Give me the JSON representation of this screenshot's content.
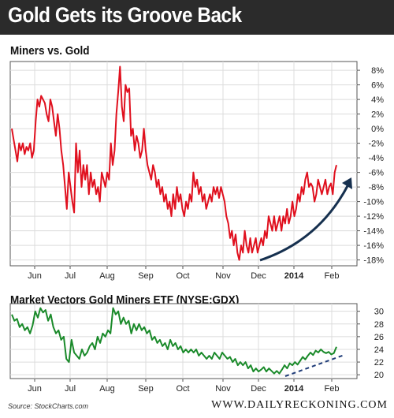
{
  "banner": {
    "title": "Gold Gets its Groove Back"
  },
  "source": "Source: StockCharts.com",
  "brand": "WWW.DAILYRECKONING.COM",
  "colors": {
    "banner": "#2b2b2b",
    "series1": "#e0101e",
    "series2": "#1a8a2a",
    "arrow": "#16304f",
    "trend": "#1f3c78"
  },
  "chart_data": [
    {
      "type": "line",
      "title": "Miners vs. Gold",
      "x_labels": [
        "Jun",
        "Jul",
        "Aug",
        "Sep",
        "Oct",
        "Nov",
        "Dec",
        "2014",
        "Feb"
      ],
      "y_ticks": [
        8,
        6,
        4,
        2,
        0,
        -2,
        -4,
        -6,
        -8,
        -10,
        -12,
        -14,
        -16,
        -18
      ],
      "y_tick_labels": [
        "8%",
        "6%",
        "4%",
        "2%",
        "0%",
        "-2%",
        "-4%",
        "-6%",
        "-8%",
        "-10%",
        "-12%",
        "-14%",
        "-16%",
        "-18%"
      ],
      "ylim": [
        -18.8,
        9.2
      ],
      "grid": true,
      "annotation": "upward arrow from Dec low to Feb",
      "series": [
        {
          "values": [
            0,
            -1.5,
            -3,
            -4.5,
            -2,
            -3,
            -2,
            -3.5,
            -2.5,
            -3,
            -2,
            -4,
            -3,
            1,
            4,
            3,
            4.5,
            4,
            3.5,
            2,
            1,
            4,
            3,
            1,
            -1,
            2,
            0,
            -3,
            -5,
            -8,
            -11,
            -6,
            -8,
            -10,
            -11.5,
            -2,
            -6,
            -3,
            -8,
            -5,
            -7,
            -5,
            -9,
            -6,
            -8,
            -7,
            -9,
            -8,
            -10,
            -6,
            -7,
            -8,
            -6,
            -7,
            -2,
            -5,
            -3,
            2,
            5,
            8.5,
            3,
            1,
            6,
            5,
            5.5,
            -1,
            0,
            -3,
            -1,
            -2,
            -4,
            -3,
            0,
            -3,
            -5,
            -6,
            -7,
            -5,
            -6,
            -8,
            -7,
            -9,
            -8,
            -10,
            -9,
            -11,
            -10,
            -12,
            -9,
            -11,
            -8,
            -10,
            -9,
            -11,
            -12,
            -10,
            -11,
            -9,
            -10,
            -6,
            -8,
            -7,
            -9,
            -8,
            -10,
            -9,
            -11,
            -10,
            -9,
            -10,
            -8,
            -9,
            -8,
            -9.5,
            -8,
            -9,
            -10,
            -12,
            -13,
            -15,
            -14,
            -16,
            -14.5,
            -17,
            -18,
            -16,
            -17,
            -14,
            -16,
            -17,
            -15,
            -17,
            -16,
            -15,
            -17,
            -16,
            -15,
            -16,
            -14,
            -15,
            -12,
            -13,
            -14,
            -12,
            -14,
            -13,
            -12,
            -14,
            -12,
            -13,
            -11,
            -13,
            -12,
            -10,
            -12,
            -11,
            -9,
            -10,
            -8,
            -9,
            -7,
            -6,
            -8,
            -7.5,
            -8,
            -10,
            -9,
            -7,
            -8,
            -9,
            -8,
            -7,
            -9,
            -8,
            -7.5,
            -9,
            -6,
            -5
          ]
        }
      ]
    },
    {
      "type": "line",
      "title": "Market Vectors Gold Miners ETF (NYSE:GDX)",
      "x_labels": [
        "Jun",
        "Jul",
        "Aug",
        "Sep",
        "Oct",
        "Nov",
        "Dec",
        "2014",
        "Feb"
      ],
      "y_ticks": [
        20,
        22,
        24,
        26,
        28,
        30
      ],
      "ylim": [
        19.4,
        31.2
      ],
      "grid": true,
      "annotation": "dashed trend line from late Dec to Feb",
      "series": [
        {
          "values": [
            29.5,
            28.5,
            28.8,
            27.5,
            28,
            27,
            27.5,
            26.5,
            27.8,
            30,
            29,
            30.5,
            29.8,
            30.2,
            28.5,
            29.5,
            27.5,
            26.5,
            27,
            25.5,
            26,
            22.5,
            22,
            25.5,
            23.5,
            23,
            22.5,
            24,
            23,
            23.5,
            24.5,
            25,
            24,
            26,
            25,
            26.5,
            26,
            27,
            26.5,
            30.5,
            29.5,
            30,
            28,
            29,
            28,
            28.5,
            26.5,
            28,
            27,
            28,
            27,
            27.5,
            26.5,
            27,
            25.5,
            26,
            25,
            25.5,
            24.5,
            25,
            24,
            25.5,
            24.5,
            25,
            24,
            24.5,
            23.5,
            24,
            23.5,
            24,
            23.5,
            24,
            23,
            23.5,
            23,
            22.5,
            23,
            22.5,
            23.5,
            23,
            22.5,
            23.5,
            23,
            22.5,
            22.8,
            22,
            22.5,
            21.5,
            22,
            21.5,
            22,
            21,
            21.5,
            20.5,
            21,
            20.5,
            20.8,
            21.2,
            20.5,
            21,
            20.6,
            20.2,
            20.6,
            20.2,
            20.8,
            21.5,
            21,
            21.8,
            21.5,
            22,
            21.6,
            22.2,
            22.8,
            22.4,
            23,
            23.5,
            23.1,
            23.8,
            23.5,
            24,
            23.6,
            23.4,
            23.6,
            23.2,
            23.4,
            24.4
          ]
        }
      ]
    }
  ]
}
